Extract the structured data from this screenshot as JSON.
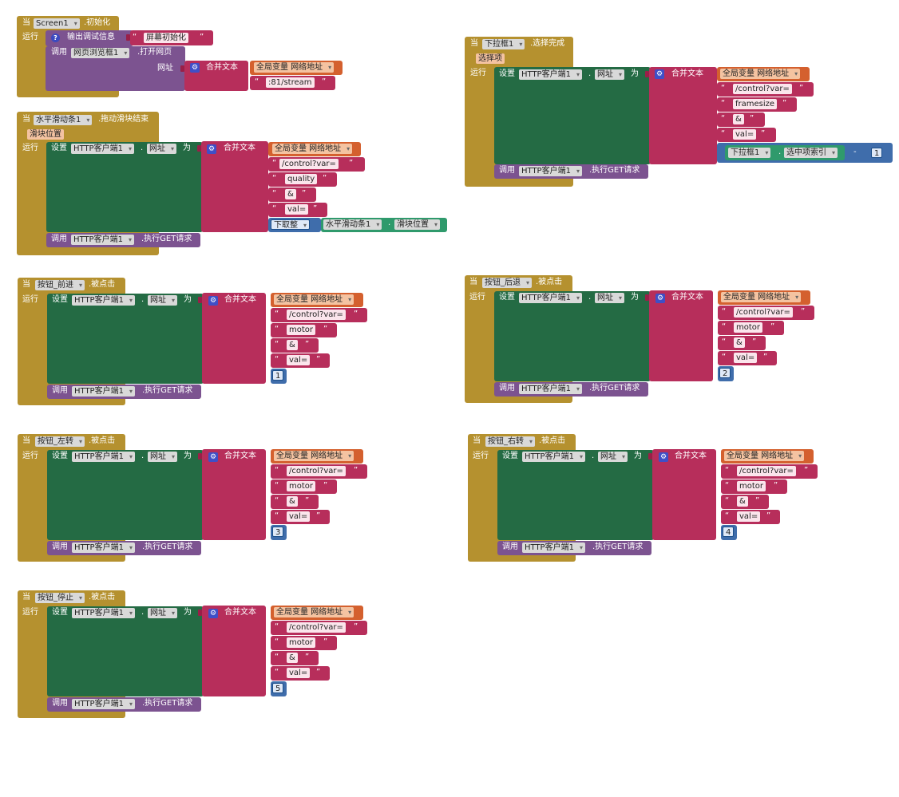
{
  "glyphs": {
    "quote_open": "“",
    "quote_close": "”",
    "gear": "⚙",
    "help": "?",
    "minus": "-"
  },
  "kw": {
    "when": "当",
    "do": "运行",
    "call": "调用",
    "set": "设置",
    "to": "为",
    "dot": ".",
    "join": "合并文本",
    "global_var": "全局变量 网络地址",
    "http": "HTTP客户端1",
    "url_prop": "网址",
    "get": ".执行GET请求"
  },
  "screen_init": {
    "component": "Screen1",
    "event": ".初始化",
    "log_label": "输出调试信息",
    "log_text": "屏幕初始化",
    "webviewer": "网页浏览框1",
    "method": ".打开网页",
    "url_label": "网址",
    "stream": ":81/stream"
  },
  "slider": {
    "component": "水平滑动条1",
    "event": ".拖动滑块结束",
    "param": "滑块位置",
    "texts": [
      "/control?var=",
      "quality",
      "&",
      "val="
    ],
    "floor": "下取整",
    "thumb_prop": "滑块位置"
  },
  "dropdown": {
    "component": "下拉框1",
    "event": ".选择完成",
    "param": "选择项",
    "texts": [
      "/control?var=",
      "framesize",
      "&",
      "val="
    ],
    "index_prop": "选中项索引",
    "minus_num": "1"
  },
  "btn_forward": {
    "component": "按钮_前进",
    "event": ".被点击",
    "texts": [
      "/control?var=",
      "motor",
      "&",
      "val="
    ],
    "num": "1"
  },
  "btn_back": {
    "component": "按钮_后退",
    "event": ".被点击",
    "texts": [
      "/control?var=",
      "motor",
      "&",
      "val="
    ],
    "num": "2"
  },
  "btn_left": {
    "component": "按钮_左转",
    "event": ".被点击",
    "texts": [
      "/control?var=",
      "motor",
      "&",
      "val="
    ],
    "num": "3"
  },
  "btn_right": {
    "component": "按钮_右转",
    "event": ".被点击",
    "texts": [
      "/control?var=",
      "motor",
      "&",
      "val="
    ],
    "num": "4"
  },
  "btn_stop": {
    "component": "按钮_停止",
    "event": ".被点击",
    "texts": [
      "/control?var=",
      "motor",
      "&",
      "val="
    ],
    "num": "5"
  },
  "colors": {
    "event": "#b5912f",
    "setter": "#246b44",
    "call": "#7c5390",
    "text": "#b72e5b",
    "global": "#d4602e",
    "math": "#3f6dab",
    "component_prop": "#2f9a6c"
  }
}
